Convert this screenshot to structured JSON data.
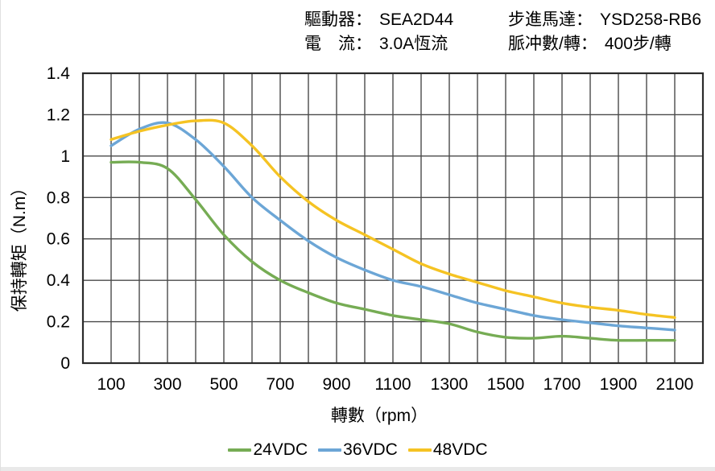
{
  "header": {
    "items": [
      {
        "label": "驅動器：",
        "value": "SEA2D44"
      },
      {
        "label": "電　流：",
        "value": "3.0A恆流"
      },
      {
        "label": "步進馬達：",
        "value": "YSD258-RB6"
      },
      {
        "label": "脈冲數/轉：",
        "value": "400步/轉"
      }
    ]
  },
  "chart_data": {
    "type": "line",
    "title": "",
    "xlabel": "轉數（rpm）",
    "ylabel": "保持轉矩（N.m）",
    "xlim": [
      0,
      2200
    ],
    "ylim": [
      0,
      1.4
    ],
    "x_grid_step": 100,
    "y_grid_step": 0.2,
    "grid": true,
    "legend_position": "bottom",
    "x_tick_labels": [
      100,
      300,
      500,
      700,
      900,
      1100,
      1300,
      1500,
      1700,
      1900,
      2100
    ],
    "y_tick_values": [
      0,
      0.2,
      0.4,
      0.6,
      0.8,
      1.0,
      1.2,
      1.4
    ],
    "y_tick_labels": [
      "0",
      "0.2",
      "0.4",
      "0.6",
      "0.8",
      "1",
      "1.2",
      "1.4"
    ],
    "x": [
      100,
      200,
      300,
      400,
      500,
      600,
      700,
      800,
      900,
      1000,
      1100,
      1200,
      1300,
      1400,
      1500,
      1600,
      1700,
      1800,
      1900,
      2000,
      2100
    ],
    "series": [
      {
        "name": "24VDC",
        "color": "#76ac54",
        "values": [
          0.97,
          0.97,
          0.94,
          0.79,
          0.62,
          0.49,
          0.4,
          0.34,
          0.29,
          0.26,
          0.23,
          0.21,
          0.19,
          0.15,
          0.125,
          0.12,
          0.13,
          0.12,
          0.11,
          0.11,
          0.11
        ]
      },
      {
        "name": "36VDC",
        "color": "#6ca6d6",
        "values": [
          1.05,
          1.13,
          1.16,
          1.08,
          0.95,
          0.8,
          0.69,
          0.59,
          0.51,
          0.45,
          0.4,
          0.37,
          0.33,
          0.29,
          0.26,
          0.23,
          0.21,
          0.195,
          0.18,
          0.17,
          0.16
        ]
      },
      {
        "name": "48VDC",
        "color": "#f5c323",
        "values": [
          1.08,
          1.12,
          1.15,
          1.17,
          1.16,
          1.05,
          0.9,
          0.78,
          0.69,
          0.62,
          0.55,
          0.48,
          0.43,
          0.39,
          0.35,
          0.32,
          0.29,
          0.27,
          0.255,
          0.235,
          0.22
        ]
      }
    ],
    "colors": {
      "grid": "#4a4a4a",
      "border": "#2b2b2b",
      "text": "#000000",
      "background": "#ffffff"
    }
  }
}
